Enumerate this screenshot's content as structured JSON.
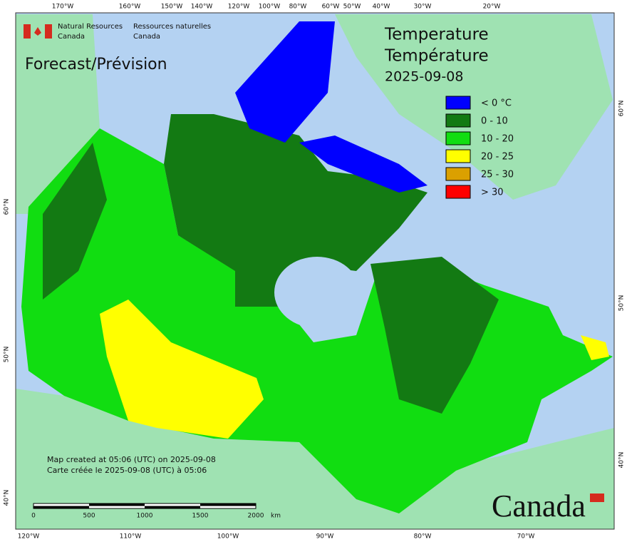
{
  "header": {
    "agency_en": [
      "Natural Resources",
      "Canada"
    ],
    "agency_fr": [
      "Ressources naturelles",
      "Canada"
    ]
  },
  "forecast": "Forecast/Prévision",
  "title": [
    "Temperature",
    "Température",
    "2025-09-08"
  ],
  "legend": [
    {
      "label": "< 0 °C",
      "color": "#0000ff"
    },
    {
      "label": "0 - 10",
      "color": "#137a13"
    },
    {
      "label": "10 - 20",
      "color": "#11dd11"
    },
    {
      "label": "20 - 25",
      "color": "#ffff00"
    },
    {
      "label": "25 - 30",
      "color": "#dba000"
    },
    {
      "label": "> 30",
      "color": "#ff0000"
    }
  ],
  "graticule": {
    "top": [
      "170°W",
      "160°W",
      "150°W",
      "140°W",
      "120°W",
      "100°W",
      "80°W",
      "60°W",
      "50°W",
      "40°W",
      "30°W",
      "20°W"
    ],
    "bottom": [
      "120°W",
      "110°W",
      "100°W",
      "90°W",
      "80°W",
      "70°W"
    ],
    "left": [
      "60°N",
      "50°N",
      "40°N"
    ],
    "right": [
      "60°N",
      "50°N",
      "40°N"
    ]
  },
  "footer": [
    "Map created at 05:06 (UTC) on 2025-09-08",
    "Carte créée le 2025-09-08 (UTC) à 05:06"
  ],
  "scale_bar": {
    "labels": [
      "0",
      "500",
      "1000",
      "1500",
      "2000"
    ],
    "unit": "km"
  },
  "wordmark": "Canada"
}
